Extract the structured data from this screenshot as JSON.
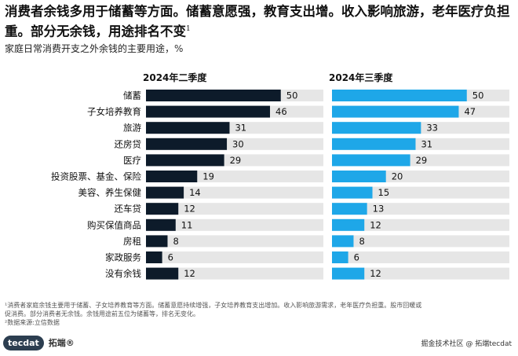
{
  "title": "消费者余钱多用于储蓄等方面。储蓄意愿强，教育支出增。收入影响旅游，老年医疗负担重。部分无余钱，用途排名不变",
  "title_sup": "1",
  "subtitle": "家庭日常消费开支之外余钱的主要用途，",
  "unit": "%",
  "footnote_lines": [
    "¹消费者家庭余钱主要用于储蓄、子女培养教育等方面。储蓄意愿持续增强，子女培养教育支出增加。收入影响旅游需求，老年医疗负担重。股市回暖或",
    "促消费。部分消费者无余钱。余钱用途前五位为储蓄等，排名无变化。",
    "²数据来源:立信数据"
  ],
  "logo": {
    "mark": "tecdat",
    "text": "拓端®"
  },
  "watermark": "掘金技术社区 @ 拓端tecdat",
  "colors": {
    "q2": "#0d1b2a",
    "q3": "#1ea7e8",
    "track": "#e6e6e6"
  },
  "chart_data": {
    "type": "bar",
    "orientation": "horizontal",
    "categories": [
      "储蓄",
      "子女培养教育",
      "旅游",
      "还房贷",
      "医疗",
      "投资股票、基金、保险",
      "美容、养生保健",
      "还车贷",
      "购买保值商品",
      "房租",
      "家政服务",
      "没有余钱"
    ],
    "series": [
      {
        "name": "2024年二季度",
        "values": [
          50,
          46,
          31,
          30,
          29,
          19,
          14,
          12,
          11,
          8,
          6,
          12
        ]
      },
      {
        "name": "2024年三季度",
        "values": [
          50,
          47,
          33,
          31,
          29,
          20,
          15,
          13,
          12,
          8,
          6,
          12
        ]
      }
    ],
    "xlim": [
      0,
      100
    ]
  }
}
